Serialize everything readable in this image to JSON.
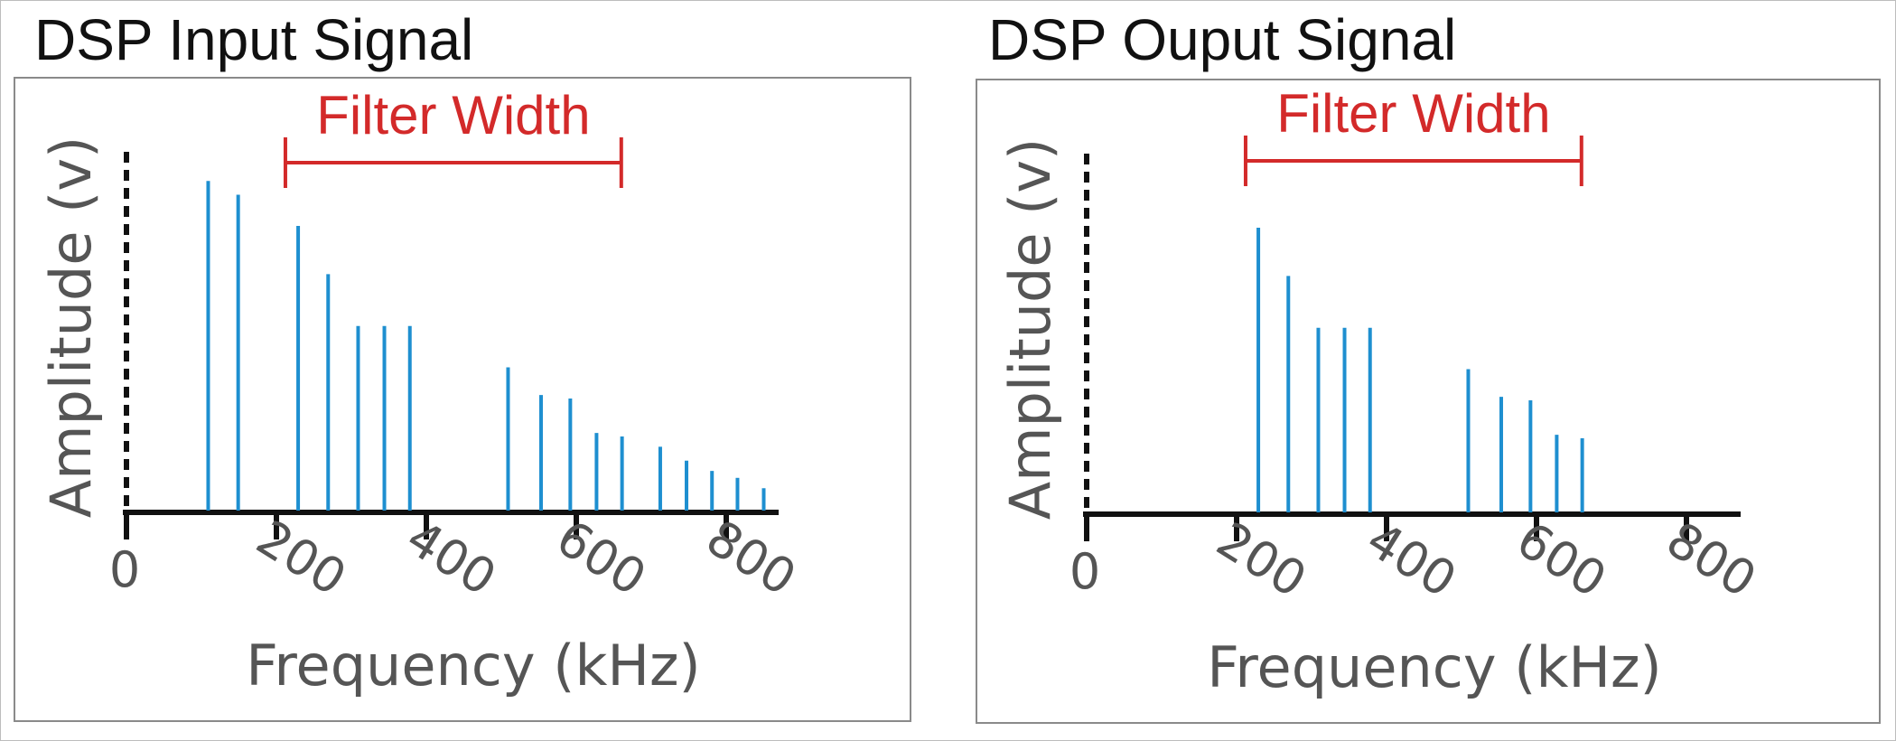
{
  "chart_data": [
    {
      "type": "bar",
      "title": "DSP Input Signal",
      "xlabel": "Frequency (kHz)",
      "ylabel": "Amplitude (v)",
      "xticks": [
        0,
        200,
        400,
        600,
        800
      ],
      "xlim": [
        0,
        870
      ],
      "ylim": [
        0,
        100
      ],
      "grid": false,
      "annotation": {
        "label": "Filter Width",
        "x_start": 212,
        "x_end": 660
      },
      "x": [
        109,
        149,
        229,
        269,
        309,
        344,
        378,
        509,
        553,
        592,
        627,
        661,
        712,
        747,
        781,
        815,
        850
      ],
      "values": [
        96,
        92,
        83,
        69,
        54,
        54,
        54,
        42,
        34,
        33,
        23,
        22,
        19,
        15,
        12,
        10,
        7
      ]
    },
    {
      "type": "bar",
      "title": "DSP Ouput Signal",
      "xlabel": "Frequency (kHz)",
      "ylabel": "Amplitude (v)",
      "xticks": [
        0,
        200,
        400,
        600,
        800
      ],
      "xlim": [
        0,
        870
      ],
      "ylim": [
        0,
        100
      ],
      "grid": false,
      "annotation": {
        "label": "Filter Width",
        "x_start": 212,
        "x_end": 660
      },
      "x": [
        229,
        269,
        309,
        344,
        378,
        509,
        553,
        592,
        627,
        661
      ],
      "values": [
        83,
        69,
        54,
        54,
        54,
        42,
        34,
        33,
        23,
        22
      ]
    }
  ]
}
